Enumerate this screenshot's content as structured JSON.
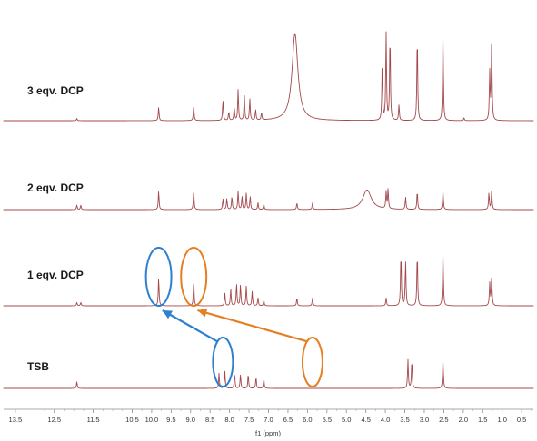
{
  "chart_data": {
    "type": "line",
    "xlabel": "f1 (ppm)",
    "x_reversed": true,
    "xlim": [
      13.8,
      0.2
    ],
    "x_ticks": [
      13.5,
      12.5,
      11.5,
      10.5,
      9.5,
      8.5,
      7.5,
      6.5,
      5.5,
      4.5,
      3.5,
      2.5,
      1.5,
      0.5
    ],
    "x_tick_labels": [
      "13.5",
      "12.5",
      "11.5",
      "10.5",
      "10.0",
      "9.5",
      "9.0",
      "8.5",
      "8.0",
      "7.5",
      "7.0",
      "6.5",
      "6.0",
      "5.5",
      "5.0",
      "4.5",
      "4.0",
      "3.5",
      "3.0",
      "2.5",
      "2.0",
      "1.5",
      "1.0",
      "0.5"
    ],
    "x_tick_values": [
      13.5,
      12.5,
      11.5,
      10.5,
      10.0,
      9.5,
      9.0,
      8.5,
      8.0,
      7.5,
      7.0,
      6.5,
      6.0,
      5.5,
      5.0,
      4.5,
      4.0,
      3.5,
      3.0,
      2.5,
      2.0,
      1.5,
      1.0,
      0.5
    ],
    "line_color": "#a3494d",
    "series": [
      {
        "name": "3 eqv. DCP",
        "peaks": [
          {
            "ppm": 11.92,
            "h": 0.04
          },
          {
            "ppm": 9.82,
            "h": 0.24
          },
          {
            "ppm": 8.92,
            "h": 0.26
          },
          {
            "ppm": 8.17,
            "h": 0.37
          },
          {
            "ppm": 8.02,
            "h": 0.16
          },
          {
            "ppm": 7.88,
            "h": 0.23
          },
          {
            "ppm": 7.78,
            "h": 0.55
          },
          {
            "ppm": 7.62,
            "h": 0.44
          },
          {
            "ppm": 7.48,
            "h": 0.38
          },
          {
            "ppm": 7.33,
            "h": 0.19
          },
          {
            "ppm": 7.18,
            "h": 0.13
          },
          {
            "ppm": 6.32,
            "h": 1.55
          },
          {
            "ppm": 4.08,
            "h": 1.0
          },
          {
            "ppm": 3.98,
            "h": 1.55
          },
          {
            "ppm": 3.88,
            "h": 1.55
          },
          {
            "ppm": 3.65,
            "h": 0.28
          },
          {
            "ppm": 3.18,
            "h": 1.55
          },
          {
            "ppm": 2.52,
            "h": 1.55
          },
          {
            "ppm": 1.98,
            "h": 0.05
          },
          {
            "ppm": 1.32,
            "h": 0.85
          },
          {
            "ppm": 1.27,
            "h": 1.4
          }
        ]
      },
      {
        "name": "2 eqv. DCP",
        "peaks": [
          {
            "ppm": 11.92,
            "h": 0.08
          },
          {
            "ppm": 11.82,
            "h": 0.08
          },
          {
            "ppm": 9.82,
            "h": 0.33
          },
          {
            "ppm": 8.92,
            "h": 0.33
          },
          {
            "ppm": 8.17,
            "h": 0.2
          },
          {
            "ppm": 8.07,
            "h": 0.2
          },
          {
            "ppm": 7.94,
            "h": 0.24
          },
          {
            "ppm": 7.78,
            "h": 0.33
          },
          {
            "ppm": 7.68,
            "h": 0.24
          },
          {
            "ppm": 7.57,
            "h": 0.29
          },
          {
            "ppm": 7.47,
            "h": 0.24
          },
          {
            "ppm": 7.27,
            "h": 0.12
          },
          {
            "ppm": 7.12,
            "h": 0.1
          },
          {
            "ppm": 6.27,
            "h": 0.12
          },
          {
            "ppm": 5.87,
            "h": 0.12
          },
          {
            "ppm": 4.47,
            "h": 0.35
          },
          {
            "ppm": 3.98,
            "h": 0.3
          },
          {
            "ppm": 3.93,
            "h": 0.35
          },
          {
            "ppm": 3.48,
            "h": 0.22
          },
          {
            "ppm": 3.18,
            "h": 0.33
          },
          {
            "ppm": 2.52,
            "h": 0.33
          },
          {
            "ppm": 1.34,
            "h": 0.3
          },
          {
            "ppm": 1.27,
            "h": 0.33
          }
        ]
      },
      {
        "name": "1 eqv. DCP",
        "peaks": [
          {
            "ppm": 11.92,
            "h": 0.06
          },
          {
            "ppm": 11.82,
            "h": 0.06
          },
          {
            "ppm": 9.82,
            "h": 0.5
          },
          {
            "ppm": 8.92,
            "h": 0.43
          },
          {
            "ppm": 8.12,
            "h": 0.22
          },
          {
            "ppm": 7.97,
            "h": 0.3
          },
          {
            "ppm": 7.82,
            "h": 0.4
          },
          {
            "ppm": 7.72,
            "h": 0.38
          },
          {
            "ppm": 7.57,
            "h": 0.35
          },
          {
            "ppm": 7.42,
            "h": 0.25
          },
          {
            "ppm": 7.27,
            "h": 0.14
          },
          {
            "ppm": 7.12,
            "h": 0.1
          },
          {
            "ppm": 6.27,
            "h": 0.14
          },
          {
            "ppm": 5.87,
            "h": 0.14
          },
          {
            "ppm": 3.98,
            "h": 0.14
          },
          {
            "ppm": 3.6,
            "h": 0.95
          },
          {
            "ppm": 3.48,
            "h": 0.8
          },
          {
            "ppm": 3.18,
            "h": 0.95
          },
          {
            "ppm": 2.52,
            "h": 0.95
          },
          {
            "ppm": 1.32,
            "h": 0.4
          },
          {
            "ppm": 1.27,
            "h": 0.5
          }
        ]
      },
      {
        "name": "TSB",
        "peaks": [
          {
            "ppm": 11.92,
            "h": 0.12
          },
          {
            "ppm": 8.27,
            "h": 0.27
          },
          {
            "ppm": 8.12,
            "h": 0.3
          },
          {
            "ppm": 7.87,
            "h": 0.27
          },
          {
            "ppm": 7.72,
            "h": 0.25
          },
          {
            "ppm": 7.52,
            "h": 0.25
          },
          {
            "ppm": 7.32,
            "h": 0.2
          },
          {
            "ppm": 7.12,
            "h": 0.17
          },
          {
            "ppm": 3.42,
            "h": 0.51
          },
          {
            "ppm": 3.32,
            "h": 0.51
          },
          {
            "ppm": 2.52,
            "h": 0.51
          }
        ]
      }
    ],
    "annotations": {
      "circles": [
        {
          "ppm": 9.82,
          "trace": "1 eqv. DCP",
          "color": "#2e7fcf"
        },
        {
          "ppm": 8.92,
          "trace": "1 eqv. DCP",
          "color": "#e67e22"
        },
        {
          "ppm": 8.17,
          "trace": "TSB",
          "color": "#2e7fcf"
        },
        {
          "ppm": 5.87,
          "trace": "TSB",
          "color": "#e67e22"
        }
      ],
      "arrows": [
        {
          "from_ppm": 8.17,
          "to_ppm": 9.82,
          "color": "#2e7fcf"
        },
        {
          "from_ppm": 5.87,
          "to_ppm": 8.92,
          "color": "#e67e22"
        }
      ]
    }
  }
}
